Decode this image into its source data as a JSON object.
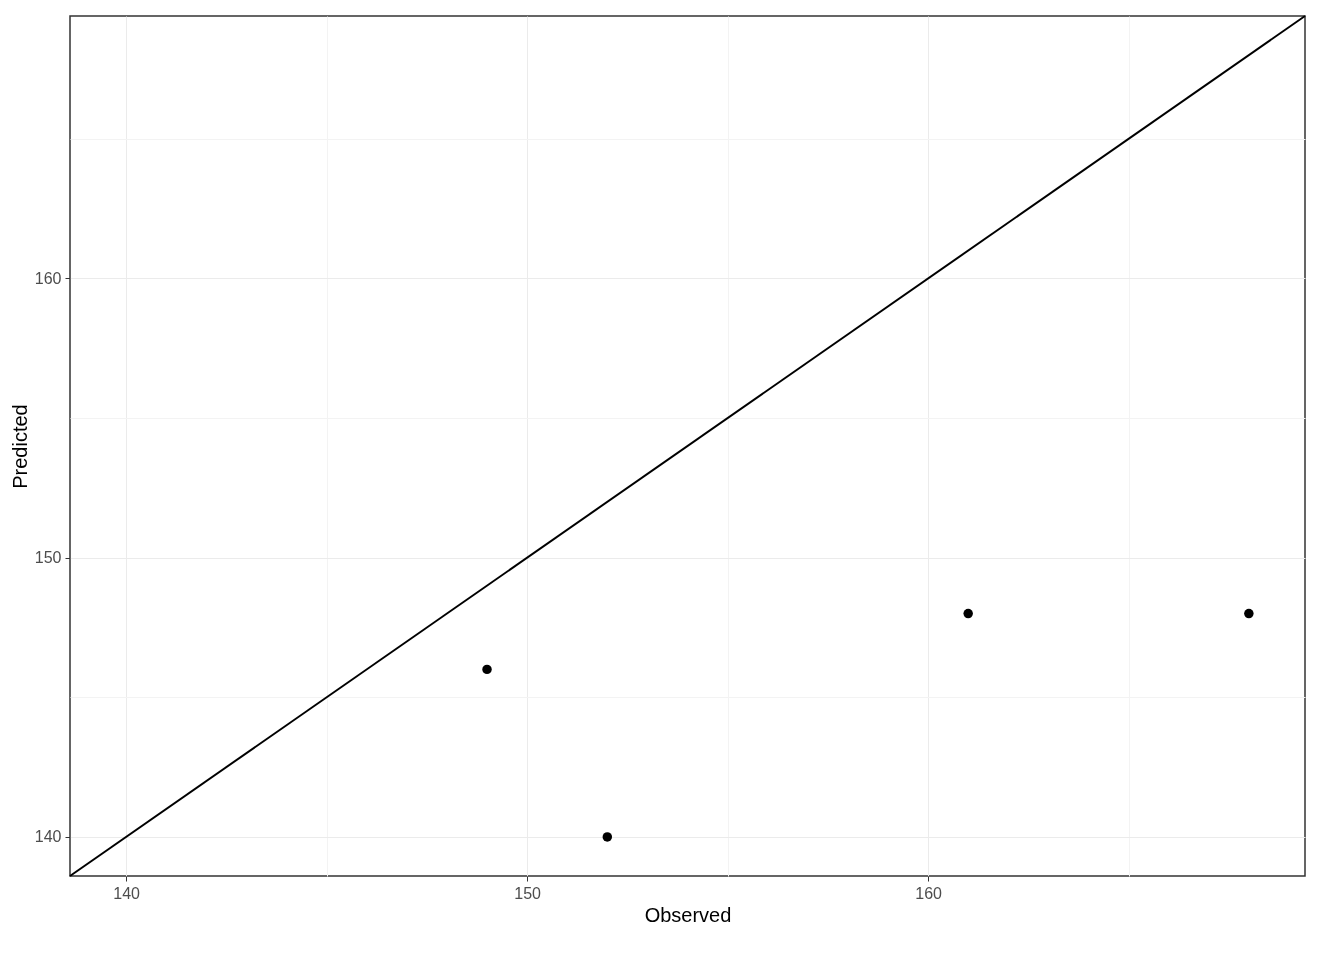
{
  "chart_data": {
    "type": "scatter",
    "xlabel": "Observed",
    "ylabel": "Predicted",
    "xlim": [
      138.6,
      169.4
    ],
    "ylim": [
      138.6,
      169.4
    ],
    "xticks": [
      140,
      {
        "value": 145,
        "label": null
      },
      150,
      {
        "value": 155,
        "label": null
      },
      160,
      {
        "value": 165,
        "label": null
      }
    ],
    "yticks": [
      140,
      {
        "value": 145,
        "label": null
      },
      150,
      {
        "value": 155,
        "label": null
      },
      160,
      {
        "value": 165,
        "label": null
      }
    ],
    "grid": true,
    "marker": "circle",
    "series": [
      {
        "color": "#000000",
        "x": [
          149,
          152,
          161,
          168
        ],
        "values": [
          146,
          140,
          148,
          148
        ]
      },
      {
        "type": "line",
        "marker": "none",
        "line_style": "solid",
        "color": "#000000",
        "x": [
          138.6,
          169.4
        ],
        "values": [
          138.6,
          169.4
        ]
      }
    ]
  }
}
